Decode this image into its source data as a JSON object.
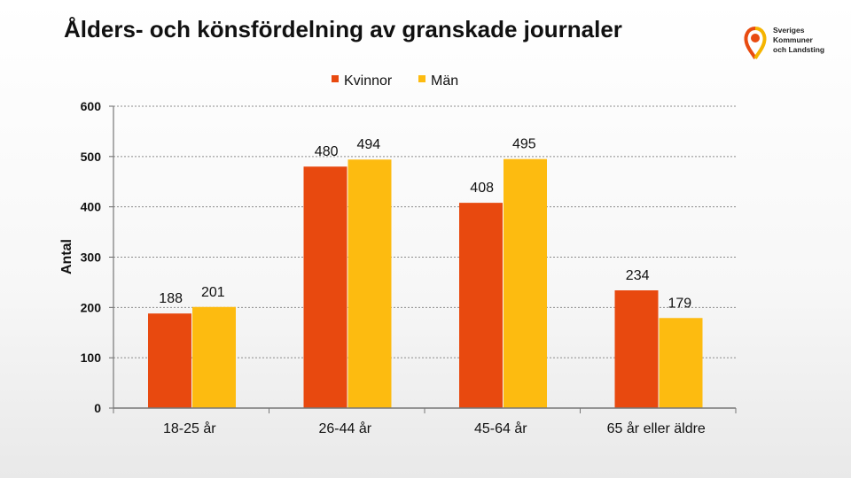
{
  "title": "Ålders- och könsfördelning av granskade journaler",
  "logo": {
    "lines": [
      "Sveriges",
      "Kommuner",
      "och Landsting"
    ],
    "colors": [
      "#e84b10",
      "#f5b400"
    ]
  },
  "chart_data": {
    "type": "bar",
    "title": "Ålders- och könsfördelning av granskade journaler",
    "xlabel": "",
    "ylabel": "Antal",
    "categories": [
      "18-25 år",
      "26-44 år",
      "45-64 år",
      "65 år eller äldre"
    ],
    "series": [
      {
        "name": "Kvinnor",
        "color": "#e8490f",
        "values": [
          188,
          480,
          408,
          234
        ]
      },
      {
        "name": "Män",
        "color": "#fdbb10",
        "values": [
          201,
          494,
          495,
          179
        ]
      }
    ],
    "ylim": [
      0,
      600
    ],
    "yticks": [
      0,
      100,
      200,
      300,
      400,
      500,
      600
    ],
    "grid": true,
    "legend": "top-center"
  }
}
